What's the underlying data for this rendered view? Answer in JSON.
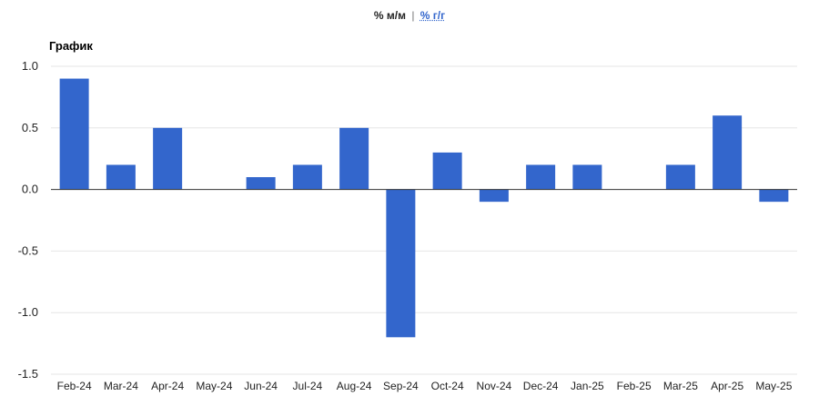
{
  "header": {
    "mode_active": "% м/м",
    "separator": "|",
    "mode_link": "% г/г"
  },
  "chart_title": "График",
  "colors": {
    "bar": "#3366cc",
    "grid": "#e6e6e6",
    "zero_line": "#333333"
  },
  "chart_data": {
    "type": "bar",
    "title": "График",
    "xlabel": "",
    "ylabel": "",
    "categories": [
      "Feb-24",
      "Mar-24",
      "Apr-24",
      "May-24",
      "Jun-24",
      "Jul-24",
      "Aug-24",
      "Sep-24",
      "Oct-24",
      "Nov-24",
      "Dec-24",
      "Jan-25",
      "Feb-25",
      "Mar-25",
      "Apr-25",
      "May-25"
    ],
    "values": [
      0.9,
      0.2,
      0.5,
      0.0,
      0.1,
      0.2,
      0.5,
      -1.2,
      0.3,
      -0.1,
      0.2,
      0.2,
      0.0,
      0.2,
      0.6,
      -0.1
    ],
    "ylim": [
      -1.5,
      1.0
    ],
    "y_ticks": [
      "1.0",
      "0.5",
      "0.0",
      "-0.5",
      "-1.0",
      "-1.5"
    ],
    "grid": true,
    "legend": "none"
  }
}
